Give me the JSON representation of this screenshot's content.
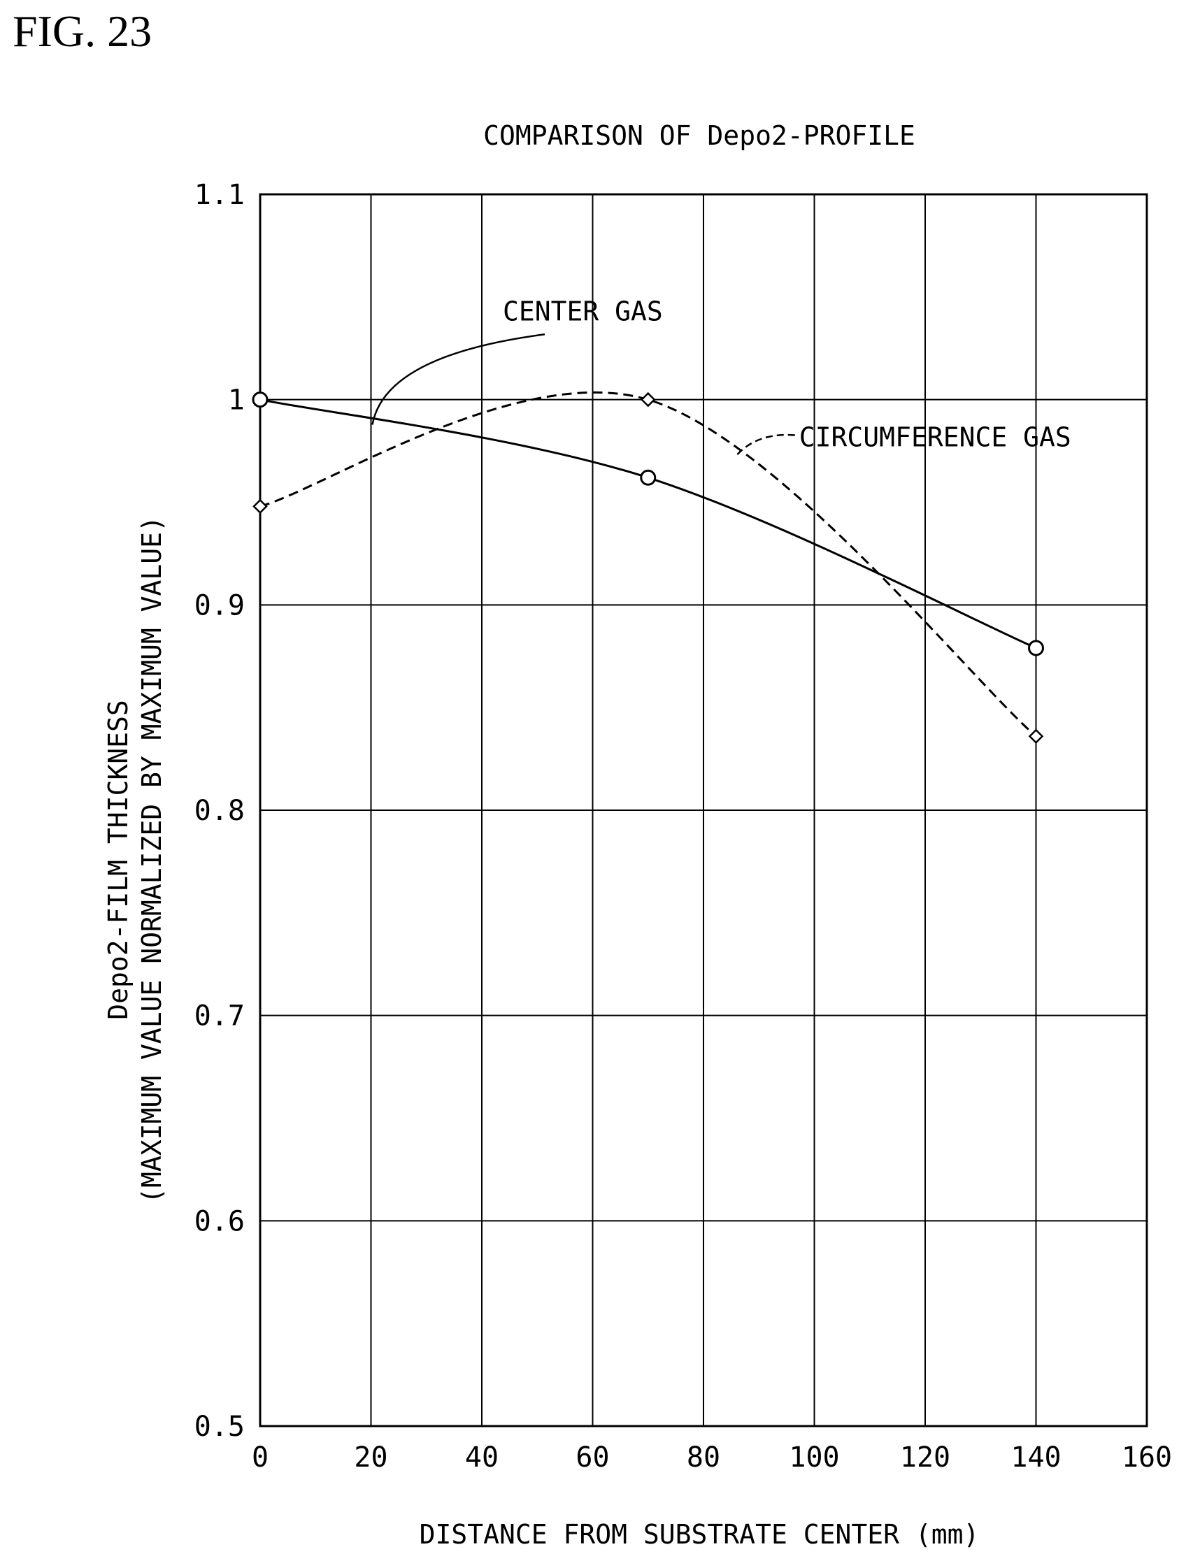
{
  "figure_label": "FIG. 23",
  "chart_data": {
    "type": "line",
    "title": "COMPARISON OF Depo2-PROFILE",
    "xlabel": "DISTANCE FROM SUBSTRATE CENTER (mm)",
    "ylabel_line1": "Depo2-FILM THICKNESS",
    "ylabel_line2": "(MAXIMUM VALUE NORMALIZED BY MAXIMUM VALUE)",
    "xlim": [
      0,
      160
    ],
    "ylim": [
      0.5,
      1.1
    ],
    "x_ticks": [
      0,
      20,
      40,
      60,
      80,
      100,
      120,
      140,
      160
    ],
    "x_tick_labels": [
      "0",
      "20",
      "40",
      "60",
      "80",
      "100",
      "120",
      "140",
      "160"
    ],
    "y_ticks": [
      0.5,
      0.6,
      0.7,
      0.8,
      0.9,
      1.0,
      1.1
    ],
    "y_tick_labels": [
      "0.5",
      "0.6",
      "0.7",
      "0.8",
      "0.9",
      "1",
      "1.1"
    ],
    "grid": true,
    "series": [
      {
        "name": "CENTER GAS",
        "line_style": "solid",
        "marker": "circle",
        "x": [
          0,
          70,
          140
        ],
        "values": [
          1.0,
          0.962,
          0.879
        ],
        "label_at": [
          40,
          1.025
        ]
      },
      {
        "name": "CIRCUMFERENCE GAS",
        "line_style": "dashed",
        "marker": "diamond",
        "x": [
          0,
          70,
          140
        ],
        "values": [
          0.948,
          1.0,
          0.836
        ],
        "label_at": [
          96,
          0.982
        ]
      }
    ]
  }
}
